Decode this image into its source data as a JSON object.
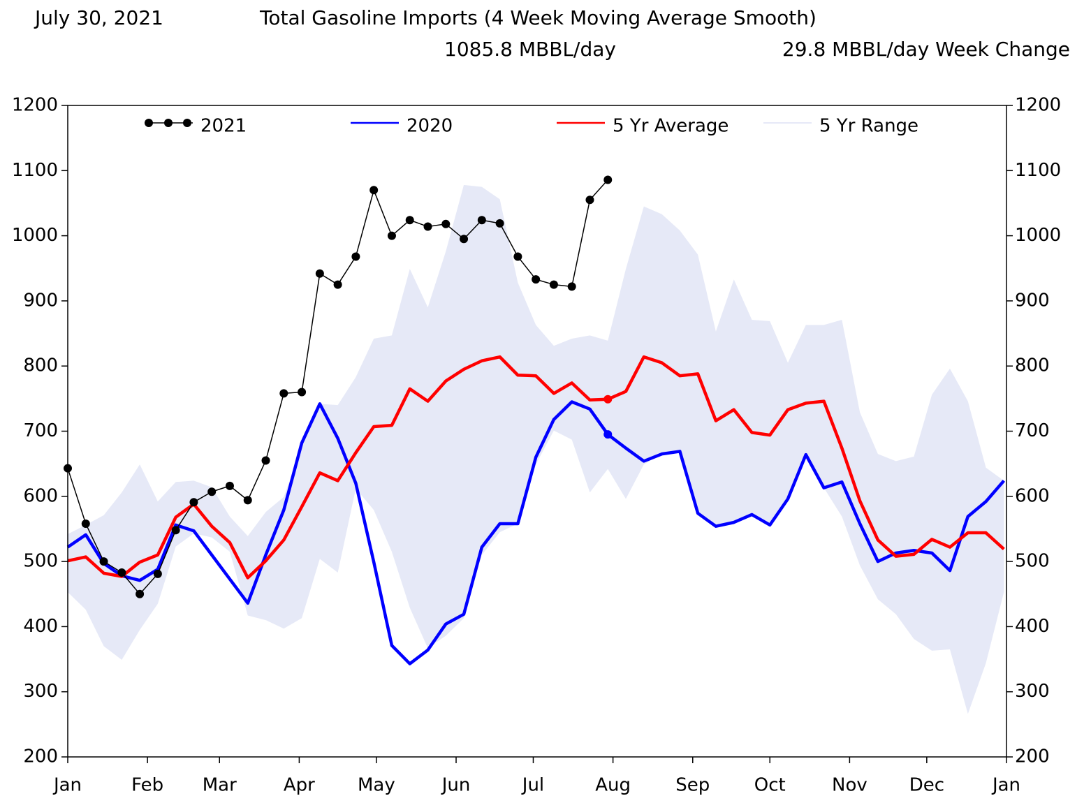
{
  "chart_data": {
    "type": "line",
    "date": "July 30, 2021",
    "title": "Total Gasoline Imports (4 Week Moving Average Smooth)",
    "current_value_label": "1085.8 MBBL/day",
    "week_change_label": "29.8 MBBL/day Week Change",
    "x": [
      0,
      7,
      14,
      21,
      28,
      35,
      42,
      49,
      56,
      63,
      70,
      77,
      84,
      91,
      98,
      105,
      112,
      119,
      126,
      133,
      140,
      147,
      154,
      161,
      168,
      175,
      182,
      189,
      196,
      203,
      210,
      217,
      224,
      231,
      238,
      245,
      252,
      259,
      266,
      273,
      280,
      287,
      294,
      301,
      308,
      315,
      322,
      329,
      336,
      343,
      350,
      357,
      364
    ],
    "xlim": [
      0,
      365
    ],
    "xticks": [
      {
        "value": 0,
        "label": "Jan"
      },
      {
        "value": 31,
        "label": "Feb"
      },
      {
        "value": 59,
        "label": "Mar"
      },
      {
        "value": 90,
        "label": "Apr"
      },
      {
        "value": 120,
        "label": "May"
      },
      {
        "value": 151,
        "label": "Jun"
      },
      {
        "value": 181,
        "label": "Jul"
      },
      {
        "value": 212,
        "label": "Aug"
      },
      {
        "value": 243,
        "label": "Sep"
      },
      {
        "value": 273,
        "label": "Oct"
      },
      {
        "value": 304,
        "label": "Nov"
      },
      {
        "value": 334,
        "label": "Dec"
      },
      {
        "value": 365,
        "label": "Jan"
      }
    ],
    "ylim": [
      200,
      1200
    ],
    "yticks": [
      200,
      300,
      400,
      500,
      600,
      700,
      800,
      900,
      1000,
      1100,
      1200
    ],
    "y2lim": [
      200,
      1200
    ],
    "y2ticks": [
      200,
      300,
      400,
      500,
      600,
      700,
      800,
      900,
      1000,
      1100,
      1200
    ],
    "grid": false,
    "legend": "top",
    "series": [
      {
        "name": "2021",
        "color": "#000000",
        "values": [
          643,
          558,
          500,
          483,
          450,
          481,
          548,
          591,
          607,
          616,
          594,
          655,
          758,
          760,
          942,
          925,
          968,
          1070,
          1000,
          1024,
          1014,
          1018,
          995,
          1024,
          1019,
          968,
          933,
          925,
          922,
          1055,
          1085.8,
          null,
          null,
          null,
          null,
          null,
          null,
          null,
          null,
          null,
          null,
          null,
          null,
          null,
          null,
          null,
          null,
          null,
          null,
          null,
          null,
          null,
          null
        ]
      },
      {
        "name": "2020",
        "color": "#0000ff",
        "values": [
          522,
          541,
          497,
          478,
          471,
          488,
          556,
          547,
          510,
          473,
          436,
          510,
          579,
          682,
          742,
          689,
          620,
          499,
          371,
          343,
          364,
          404,
          419,
          522,
          558,
          558,
          660,
          718,
          745,
          734,
          695,
          674,
          654,
          665,
          669,
          574,
          554,
          560,
          572,
          556,
          596,
          664,
          613,
          622,
          558,
          500,
          513,
          517,
          513,
          486,
          569,
          592,
          624
        ]
      },
      {
        "name": "5 Yr Average",
        "color": "#ff0000",
        "values": [
          501,
          507,
          482,
          477,
          499,
          510,
          568,
          588,
          554,
          529,
          475,
          501,
          533,
          584,
          636,
          624,
          667,
          707,
          709,
          765,
          746,
          777,
          795,
          808,
          814,
          786,
          785,
          758,
          774,
          748,
          749,
          761,
          814,
          805,
          785,
          788,
          716,
          733,
          698,
          694,
          733,
          743,
          746,
          674,
          593,
          533,
          508,
          511,
          534,
          522,
          544,
          544,
          519
        ]
      },
      {
        "name": "5 Yr Range",
        "color": "#e6e9f7",
        "high": [
          542,
          556,
          571,
          606,
          649,
          592,
          622,
          624,
          614,
          569,
          539,
          576,
          599,
          676,
          742,
          740,
          783,
          842,
          847,
          949,
          890,
          976,
          1078,
          1075,
          1056,
          928,
          863,
          831,
          842,
          847,
          839,
          949,
          1045,
          1033,
          1008,
          971,
          853,
          933,
          871,
          869,
          805,
          863,
          863,
          871,
          729,
          665,
          654,
          661,
          756,
          796,
          746,
          644,
          624
        ],
        "low": [
          453,
          426,
          370,
          349,
          395,
          435,
          523,
          543,
          537,
          515,
          417,
          410,
          397,
          413,
          504,
          483,
          612,
          579,
          515,
          429,
          367,
          386,
          413,
          510,
          545,
          558,
          649,
          701,
          687,
          606,
          642,
          596,
          649,
          665,
          669,
          574,
          554,
          560,
          572,
          556,
          596,
          664,
          613,
          569,
          494,
          442,
          419,
          381,
          363,
          365,
          266,
          344,
          453
        ]
      }
    ]
  }
}
